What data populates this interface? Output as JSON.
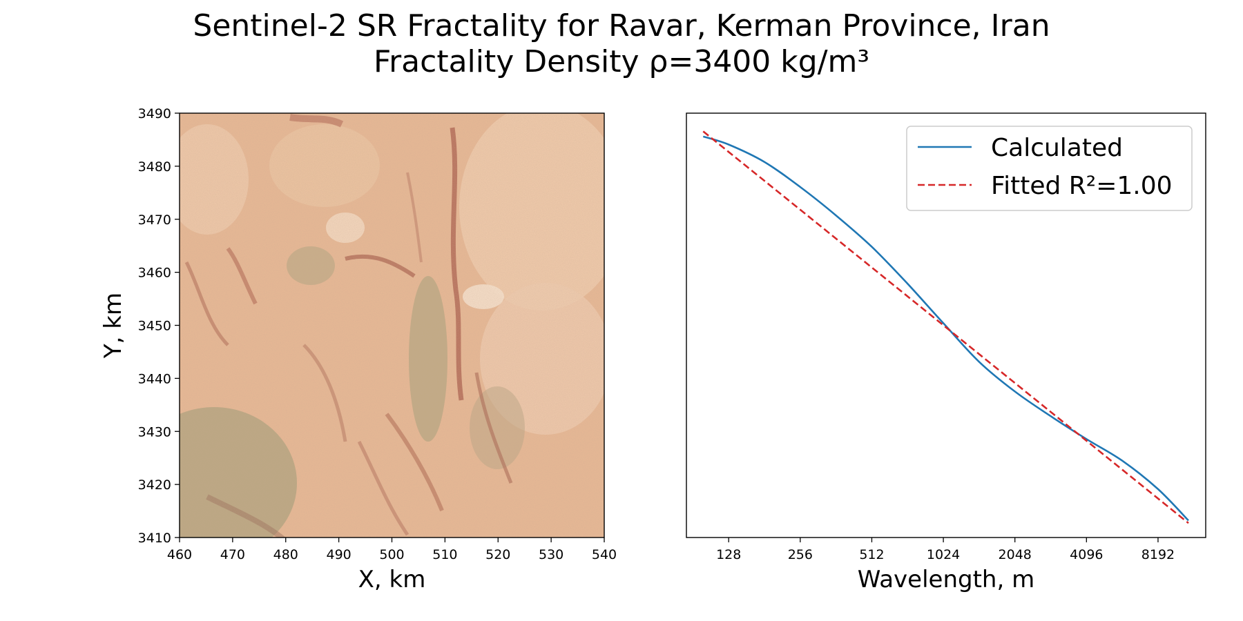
{
  "title": {
    "line1": "Sentinel-2 SR Fractality for Ravar, Kerman Province, Iran",
    "line2": "Fractality Density ρ=3400 kg/m³"
  },
  "chart_data": [
    {
      "type": "heatmap",
      "subtype": "satellite-image",
      "xlabel": "X, km",
      "ylabel": "Y, km",
      "xlim": [
        460,
        540
      ],
      "ylim": [
        3410,
        3490
      ],
      "xticks": [
        460,
        470,
        480,
        490,
        500,
        510,
        520,
        530,
        540
      ],
      "yticks": [
        3410,
        3420,
        3430,
        3440,
        3450,
        3460,
        3470,
        3480,
        3490
      ],
      "colors": {
        "base": "#e9b995",
        "light": "#f6d9bd",
        "red": "#b46a55",
        "green": "#9b9a74"
      }
    },
    {
      "type": "line",
      "xlabel": "Wavelength, m",
      "ylabel": "",
      "xscale": "log2",
      "xlim": [
        85,
        13000
      ],
      "xticks": [
        128,
        256,
        512,
        1024,
        2048,
        4096,
        8192
      ],
      "yticks_shown": false,
      "ylim": [
        0,
        1
      ],
      "legend_position": "upper right",
      "series": [
        {
          "name": "Calculated",
          "color": "#1f77b4",
          "style": "solid",
          "x": [
            100,
            128,
            181,
            256,
            362,
            512,
            724,
            1024,
            1448,
            2048,
            2896,
            4096,
            5793,
            8192,
            11000
          ],
          "y": [
            0.945,
            0.926,
            0.885,
            0.826,
            0.759,
            0.685,
            0.598,
            0.505,
            0.414,
            0.344,
            0.286,
            0.232,
            0.181,
            0.114,
            0.04
          ]
        },
        {
          "name": "Fitted R²=1.00",
          "color": "#d62728",
          "style": "dashed",
          "x": [
            100,
            11000
          ],
          "y": [
            0.957,
            0.034
          ]
        }
      ]
    }
  ]
}
